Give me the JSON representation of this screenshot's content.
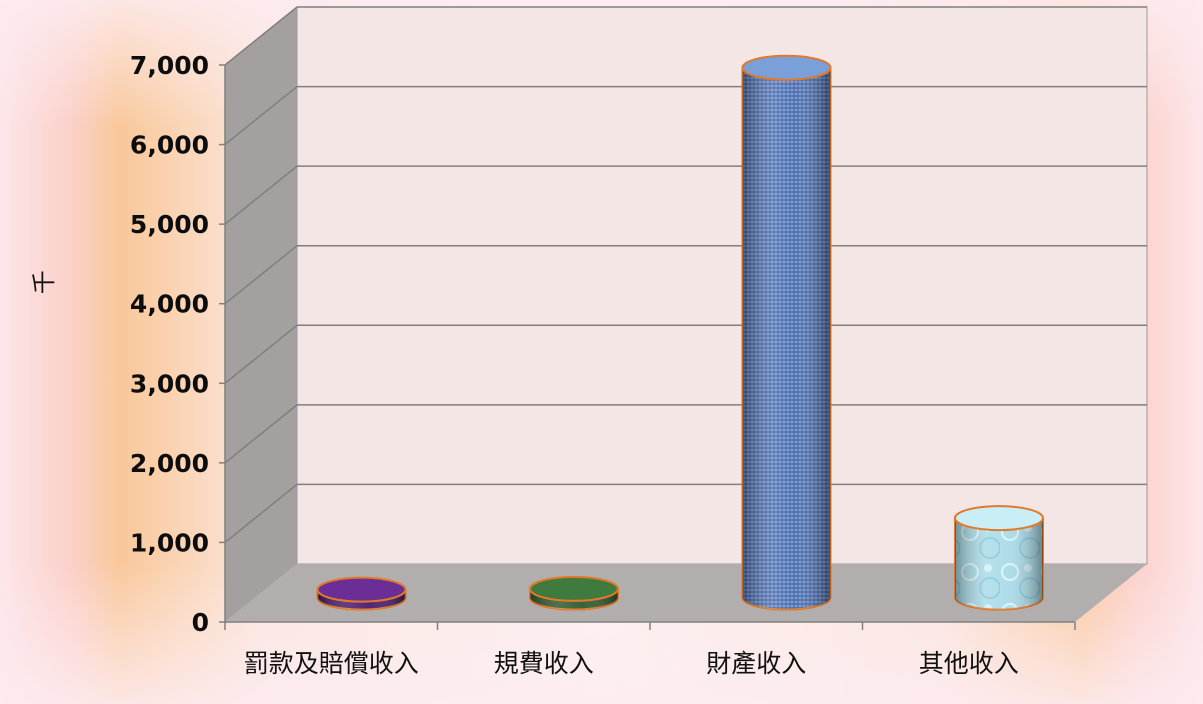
{
  "chart_data": {
    "type": "bar",
    "style": "3d-cylinder",
    "title": "",
    "xlabel": "",
    "ylabel": "千",
    "ylim": [
      0,
      7000
    ],
    "yticks": [
      0,
      1000,
      2000,
      3000,
      4000,
      5000,
      6000,
      7000
    ],
    "ytick_labels": [
      "0",
      "1,000",
      "2,000",
      "3,000",
      "4,000",
      "5,000",
      "6,000",
      "7,000"
    ],
    "categories": [
      "罰款及賠償收入",
      "規費收入",
      "財產收入",
      "其他收入"
    ],
    "values": [
      60,
      110,
      6660,
      1000
    ],
    "grid": true,
    "legend": "none",
    "colors": {
      "bar_fills": [
        "#4a1a6e",
        "#2e5a2e",
        "#4f73b8",
        "#a9dbe8"
      ],
      "bar_tops": [
        "#6b2d96",
        "#3f7a3f",
        "#7b9fd8",
        "#c9eef5"
      ],
      "bar_outline": "#e07a2a",
      "wall": "#f5e6e6",
      "side_wall": "#a4a0a0",
      "floor": "#b3aeae",
      "gridline": "#7f7f7f"
    }
  }
}
